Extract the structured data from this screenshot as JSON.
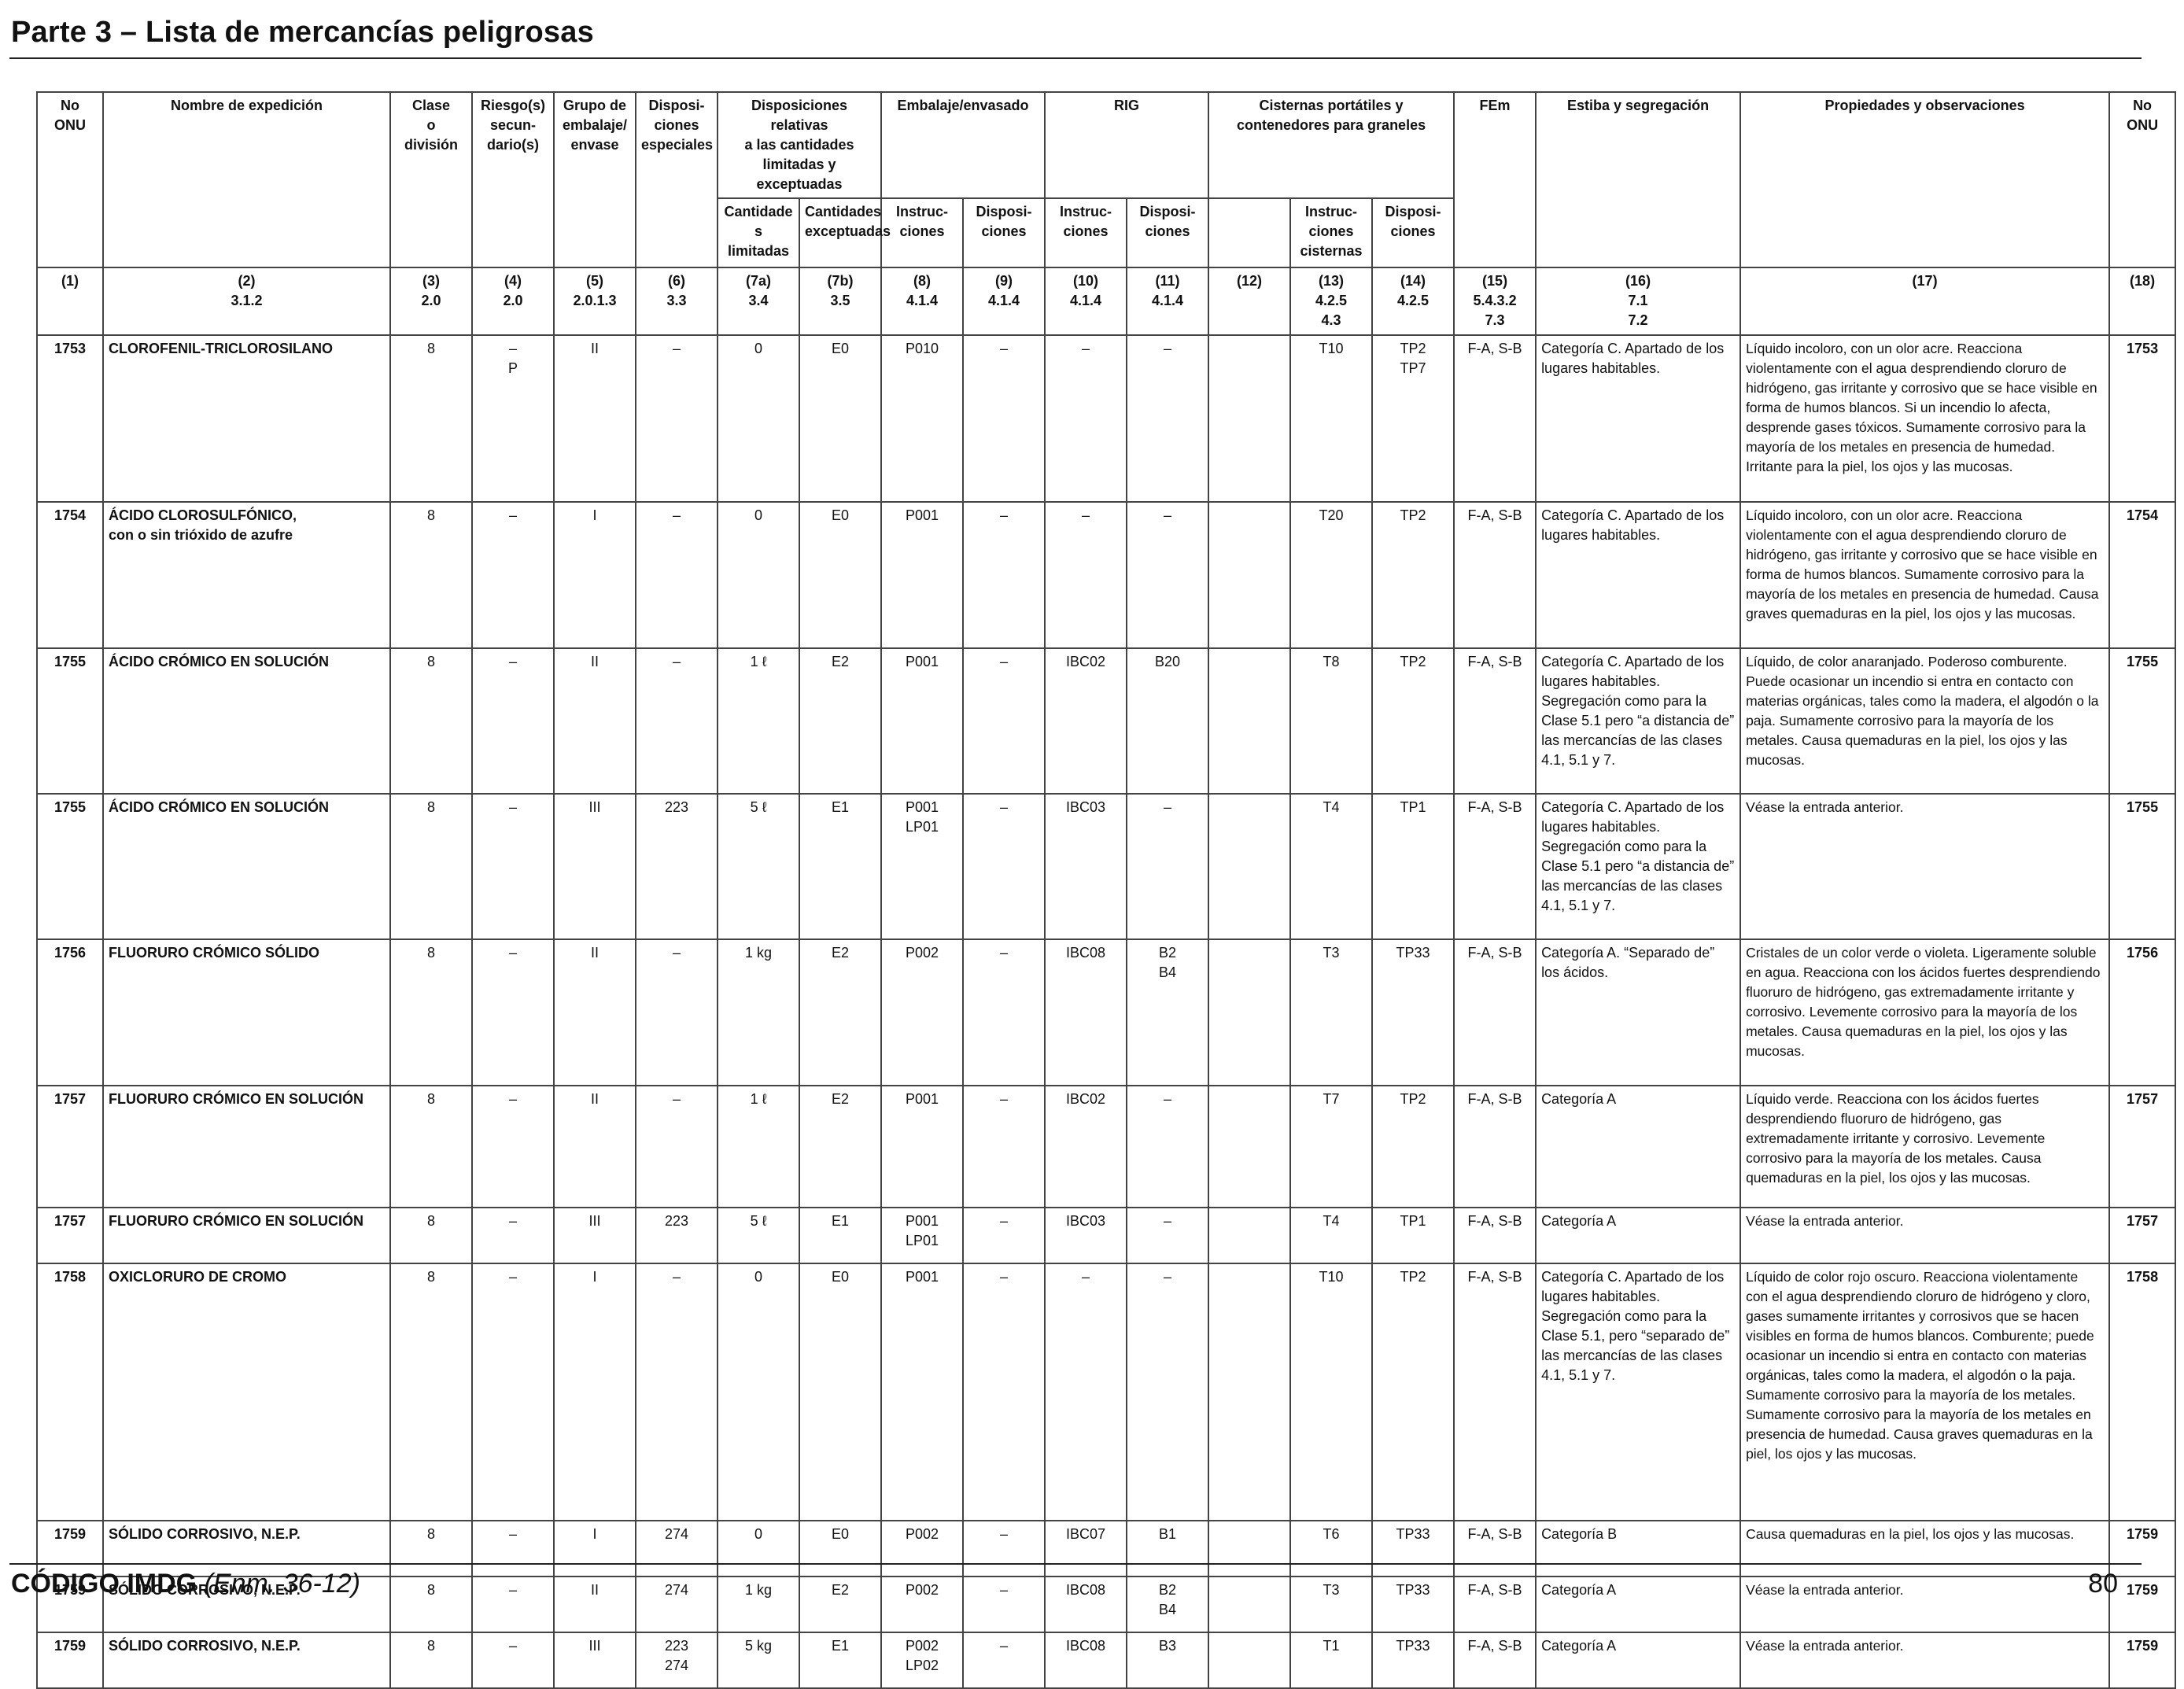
{
  "page_title": "Parte 3 – Lista de mercancías peligrosas",
  "header": {
    "no_onu": "No\nONU",
    "nombre": "Nombre de expedición",
    "clase": "Clase\no\ndivisión",
    "riesgo": "Riesgo(s)\nsecun-\ndario(s)",
    "grupo": "Grupo de\nembalaje/\nenvase",
    "dispos_esp": "Disposi-\nciones\nespeciales",
    "dispos_lim": "Disposiciones relativas\na las cantidades\nlimitadas y exceptuadas",
    "cant_lim": "Cantidade\ns limitadas",
    "cant_exc": "Cantidades\nexceptuadas",
    "embalaje": "Embalaje/envasado",
    "emb_instr": "Instruc-\nciones",
    "emb_disp": "Disposi-\nciones",
    "rig": "RIG",
    "rig_instr": "Instruc-\nciones",
    "rig_disp": "Disposi-\nciones",
    "cisternas": "Cisternas portátiles y\ncontenedores para graneles",
    "cis_instr": "Instruc-\nciones\ncisternas",
    "cis_disp": "Disposi-\nciones",
    "fem": "FEm",
    "estiba": "Estiba y segregación",
    "propiedades": "Propiedades y observaciones",
    "no_onu_r": "No\nONU"
  },
  "colnums": [
    "(1)",
    "(2)\n3.1.2",
    "(3)\n2.0",
    "(4)\n2.0",
    "(5)\n2.0.1.3",
    "(6)\n3.3",
    "(7a)\n3.4",
    "(7b)\n3.5",
    "(8)\n4.1.4",
    "(9)\n4.1.4",
    "(10)\n4.1.4",
    "(11)\n4.1.4",
    "(12)",
    "(13)\n4.2.5\n4.3",
    "(14)\n4.2.5",
    "(15)\n5.4.3.2\n7.3",
    "(16)\n7.1\n7.2",
    "(17)",
    "(18)"
  ],
  "rows": [
    {
      "onu": "1753",
      "nombre": "CLOROFENIL-TRICLOROSILANO",
      "clase": "8",
      "riesgo": "–\nP",
      "grupo": "II",
      "disp": "–",
      "cl": "0",
      "ce": "E0",
      "ei": "P010",
      "ed": "–",
      "ri": "–",
      "rd": "–",
      "c12": "",
      "ci": "T10",
      "cd": "TP2\nTP7",
      "fem": "F-A, S-B",
      "estiba": "Categoría C. Apartado de los lugares habitables.",
      "obs": "Líquido incoloro, con un olor acre. Reacciona violentamente con el agua desprendiendo cloruro de hidrógeno, gas irritante y corrosivo que se hace visible en forma de humos blancos. Si un incendio lo afecta, desprende gases tóxicos. Sumamente corrosivo para la mayoría de los metales en presencia de humedad. Irritante para la piel, los ojos y las mucosas.",
      "onu2": "1753"
    },
    {
      "onu": "1754",
      "nombre": "ÁCIDO CLOROSULFÓNICO,\ncon o sin trióxido de azufre",
      "clase": "8",
      "riesgo": "–",
      "grupo": "I",
      "disp": "–",
      "cl": "0",
      "ce": "E0",
      "ei": "P001",
      "ed": "–",
      "ri": "–",
      "rd": "–",
      "c12": "",
      "ci": "T20",
      "cd": "TP2",
      "fem": "F-A, S-B",
      "estiba": "Categoría C. Apartado de los lugares habitables.",
      "obs": "Líquido incoloro, con un olor acre. Reacciona violentamente con el agua desprendiendo cloruro de hidrógeno, gas irritante y corrosivo que se hace visible en forma de humos blancos. Sumamente corrosivo para la mayoría de los metales en presencia de humedad. Causa graves quemaduras en la piel, los ojos y las mucosas.",
      "onu2": "1754"
    },
    {
      "onu": "1755",
      "nombre": "ÁCIDO CRÓMICO EN SOLUCIÓN",
      "clase": "8",
      "riesgo": "–",
      "grupo": "II",
      "disp": "–",
      "cl": "1 ℓ",
      "ce": "E2",
      "ei": "P001",
      "ed": "–",
      "ri": "IBC02",
      "rd": "B20",
      "c12": "",
      "ci": "T8",
      "cd": "TP2",
      "fem": "F-A, S-B",
      "estiba": "Categoría C. Apartado de los lugares habitables. Segregación como para la Clase 5.1 pero “a distancia de” las mercancías de las clases 4.1, 5.1 y 7.",
      "obs": "Líquido, de color anaranjado. Poderoso comburente. Puede ocasionar un incendio si entra en contacto con materias orgánicas, tales como la madera, el algodón o la paja. Sumamente corrosivo para la mayoría de los metales. Causa quemaduras en la piel, los ojos y las mucosas.",
      "onu2": "1755"
    },
    {
      "onu": "1755",
      "nombre": "ÁCIDO CRÓMICO EN SOLUCIÓN",
      "clase": "8",
      "riesgo": "–",
      "grupo": "III",
      "disp": "223",
      "cl": "5 ℓ",
      "ce": "E1",
      "ei": "P001\nLP01",
      "ed": "–",
      "ri": "IBC03",
      "rd": "–",
      "c12": "",
      "ci": "T4",
      "cd": "TP1",
      "fem": "F-A, S-B",
      "estiba": "Categoría C. Apartado de los lugares habitables. Segregación como para la Clase 5.1 pero “a distancia de” las mercancías de las clases 4.1, 5.1 y 7.",
      "obs": "Véase la entrada anterior.",
      "onu2": "1755"
    },
    {
      "onu": "1756",
      "nombre": "FLUORURO CRÓMICO SÓLIDO",
      "clase": "8",
      "riesgo": "–",
      "grupo": "II",
      "disp": "–",
      "cl": "1 kg",
      "ce": "E2",
      "ei": "P002",
      "ed": "–",
      "ri": "IBC08",
      "rd": "B2\nB4",
      "c12": "",
      "ci": "T3",
      "cd": "TP33",
      "fem": "F-A, S-B",
      "estiba": "Categoría A. “Separado de” los ácidos.",
      "obs": "Cristales de un color verde o violeta. Ligeramente soluble en agua. Reacciona con los ácidos fuertes desprendiendo fluoruro de hidrógeno, gas extremadamente irritante y corrosivo. Levemente corrosivo para la mayoría de los metales. Causa quemaduras en la piel, los ojos y las mucosas.",
      "onu2": "1756"
    },
    {
      "onu": "1757",
      "nombre": "FLUORURO CRÓMICO EN SOLUCIÓN",
      "clase": "8",
      "riesgo": "–",
      "grupo": "II",
      "disp": "–",
      "cl": "1 ℓ",
      "ce": "E2",
      "ei": "P001",
      "ed": "–",
      "ri": "IBC02",
      "rd": "–",
      "c12": "",
      "ci": "T7",
      "cd": "TP2",
      "fem": "F-A, S-B",
      "estiba": "Categoría A",
      "obs": "Líquido verde. Reacciona con los ácidos fuertes desprendiendo fluoruro de hidrógeno, gas extremadamente irritante y corrosivo. Levemente corrosivo para la mayoría de los metales. Causa quemaduras en la piel, los ojos y las mucosas.",
      "onu2": "1757"
    },
    {
      "onu": "1757",
      "nombre": "FLUORURO CRÓMICO EN SOLUCIÓN",
      "clase": "8",
      "riesgo": "–",
      "grupo": "III",
      "disp": "223",
      "cl": "5 ℓ",
      "ce": "E1",
      "ei": "P001\nLP01",
      "ed": "–",
      "ri": "IBC03",
      "rd": "–",
      "c12": "",
      "ci": "T4",
      "cd": "TP1",
      "fem": "F-A, S-B",
      "estiba": "Categoría A",
      "obs": "Véase la entrada anterior.",
      "onu2": "1757"
    },
    {
      "onu": "1758",
      "nombre": "OXICLORURO DE CROMO",
      "clase": "8",
      "riesgo": "–",
      "grupo": "I",
      "disp": "–",
      "cl": "0",
      "ce": "E0",
      "ei": "P001",
      "ed": "–",
      "ri": "–",
      "rd": "–",
      "c12": "",
      "ci": "T10",
      "cd": "TP2",
      "fem": "F-A, S-B",
      "estiba": "Categoría C. Apartado de los lugares habitables. Segregación como para la Clase 5.1, pero “separado de” las mercancías de las clases 4.1, 5.1 y 7.",
      "obs": "Líquido de color rojo oscuro. Reacciona violentamente con el agua desprendiendo cloruro de hidrógeno y cloro, gases sumamente irritantes y corrosivos que se hacen visibles en forma de humos blancos. Comburente; puede ocasionar un incendio si entra en contacto con materias orgánicas, tales como la madera, el algodón o la paja. Sumamente corrosivo para la mayoría de los metales. Sumamente corrosivo para la mayoría de los metales en presencia de humedad. Causa graves quemaduras en la piel, los ojos y las mucosas.",
      "onu2": "1758"
    },
    {
      "onu": "1759",
      "nombre": "SÓLIDO CORROSIVO, N.E.P.",
      "clase": "8",
      "riesgo": "–",
      "grupo": "I",
      "disp": "274",
      "cl": "0",
      "ce": "E0",
      "ei": "P002",
      "ed": "–",
      "ri": "IBC07",
      "rd": "B1",
      "c12": "",
      "ci": "T6",
      "cd": "TP33",
      "fem": "F-A, S-B",
      "estiba": "Categoría B",
      "obs": "Causa quemaduras en la piel, los ojos y las mucosas.",
      "onu2": "1759"
    },
    {
      "onu": "1759",
      "nombre": "SÓLIDO CORROSIVO, N.E.P.",
      "clase": "8",
      "riesgo": "–",
      "grupo": "II",
      "disp": "274",
      "cl": "1 kg",
      "ce": "E2",
      "ei": "P002",
      "ed": "–",
      "ri": "IBC08",
      "rd": "B2\nB4",
      "c12": "",
      "ci": "T3",
      "cd": "TP33",
      "fem": "F-A, S-B",
      "estiba": "Categoría A",
      "obs": "Véase la entrada anterior.",
      "onu2": "1759"
    },
    {
      "onu": "1759",
      "nombre": "SÓLIDO CORROSIVO, N.E.P.",
      "clase": "8",
      "riesgo": "–",
      "grupo": "III",
      "disp": "223\n274",
      "cl": "5 kg",
      "ce": "E1",
      "ei": "P002\nLP02",
      "ed": "–",
      "ri": "IBC08",
      "rd": "B3",
      "c12": "",
      "ci": "T1",
      "cd": "TP33",
      "fem": "F-A, S-B",
      "estiba": "Categoría A",
      "obs": "Véase la entrada anterior.",
      "onu2": "1759"
    }
  ],
  "footer": {
    "code": "CÓDIGO IMDG",
    "amendment": "(Enm. 36-12)",
    "page_number": "80"
  }
}
